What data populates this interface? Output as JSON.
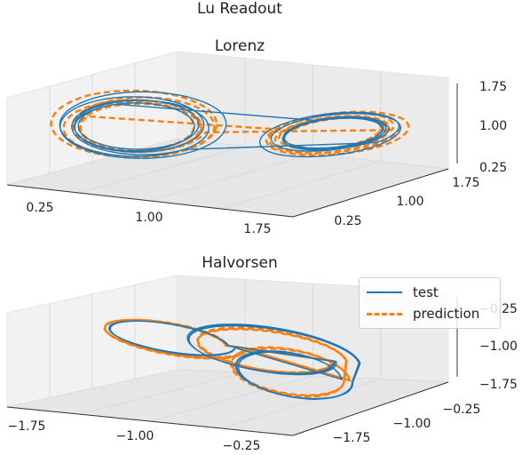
{
  "suptitle": "Lu Readout",
  "legend": {
    "entries": [
      "test",
      "prediction"
    ]
  },
  "colors": {
    "test": "#1f77b4",
    "prediction": "#ff7f0e",
    "pane": "#f2f2f2",
    "grid": "#d9d9d9"
  },
  "chart_data": [
    {
      "type": "line",
      "projection": "3d",
      "title": "Lorenz",
      "grid": true,
      "xticks": [
        "0.25",
        "1.00",
        "1.75"
      ],
      "yticks": [
        "0.25",
        "1.00",
        "1.75"
      ],
      "zticks": [
        "0.25",
        "1.00",
        "1.75"
      ],
      "series": [
        {
          "name": "test",
          "style": "solid"
        },
        {
          "name": "prediction",
          "style": "dashed"
        }
      ]
    },
    {
      "type": "line",
      "projection": "3d",
      "title": "Halvorsen",
      "grid": true,
      "xticks": [
        "−1.75",
        "−1.00",
        "−0.25"
      ],
      "yticks": [
        "−1.75",
        "−1.00",
        "−0.25"
      ],
      "zticks": [
        "−1.75",
        "−1.00",
        "−0.25"
      ],
      "series": [
        {
          "name": "test",
          "style": "solid"
        },
        {
          "name": "prediction",
          "style": "dashed"
        }
      ]
    }
  ]
}
